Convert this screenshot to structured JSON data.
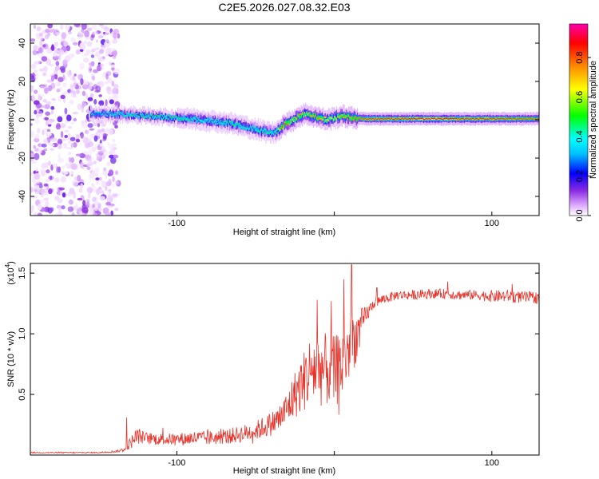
{
  "figure_title": "C2E5.2026.027.08.32.E03",
  "chart_data": [
    {
      "type": "heatmap",
      "title": "C2E5.2026.027.08.32.E03",
      "xlabel": "Height of straight line (km)",
      "ylabel": "Frequency (Hz)",
      "xlim": [
        -193,
        130
      ],
      "ylim": [
        -50,
        50
      ],
      "x_ticks": [
        -100,
        0,
        100
      ],
      "x_tick_labels": [
        "-100",
        "",
        "100"
      ],
      "y_ticks": [
        -40,
        -20,
        0,
        20,
        40
      ],
      "y_tick_labels": [
        "-40",
        "-20",
        "0",
        "20",
        "40"
      ],
      "colorbar": {
        "label": "Normalized spectral amplitude",
        "range": [
          0,
          0.97
        ],
        "ticks": [
          0.0,
          0.2,
          0.4,
          0.6,
          0.8
        ],
        "tick_labels": [
          "0.0",
          "0.2",
          "0.4",
          "0.6",
          "0.8"
        ],
        "colormap": [
          "#ffffff",
          "#e0b0ff",
          "#8a2be2",
          "#0000ff",
          "#00bfff",
          "#00ffff",
          "#00ff00",
          "#ffff00",
          "#ff8800",
          "#ff0000",
          "#ff00aa"
        ]
      },
      "noise_region_x": [
        -193,
        -137
      ],
      "signal_ridge": {
        "x": [
          -155,
          -140,
          -120,
          -100,
          -85,
          -75,
          -65,
          -55,
          -45,
          -38,
          -33,
          -28,
          -22,
          -18,
          -14,
          -10,
          -5,
          0,
          5,
          10,
          20,
          40,
          60,
          80,
          100,
          130
        ],
        "center_freq": [
          3,
          3,
          2,
          1,
          0,
          -1,
          -2,
          -4,
          -6,
          -7,
          -3,
          -1,
          2,
          3,
          2,
          1,
          0,
          1,
          2,
          1,
          0.5,
          0.5,
          0.5,
          0.5,
          0.5,
          0.5
        ],
        "peak_amplitude": [
          0.45,
          0.5,
          0.55,
          0.55,
          0.5,
          0.5,
          0.55,
          0.5,
          0.55,
          0.5,
          0.85,
          0.7,
          0.75,
          0.7,
          0.75,
          0.75,
          0.7,
          0.7,
          0.75,
          0.75,
          0.85,
          0.85,
          0.9,
          0.85,
          0.85,
          0.8
        ]
      }
    },
    {
      "type": "line",
      "title": "",
      "xlabel": "Height of straight line (km)",
      "ylabel": "SNR (10 * v/v)",
      "y_multiplier_label": "(x10",
      "y_multiplier_exp": "4",
      "xlim": [
        -193,
        130
      ],
      "ylim": [
        0,
        1.58
      ],
      "x_ticks": [
        -100,
        0,
        100
      ],
      "x_tick_labels": [
        "-100",
        "",
        "100"
      ],
      "y_ticks": [
        0.5,
        1.0,
        1.5
      ],
      "y_tick_labels": [
        "0.5",
        "1.0",
        "1.5"
      ],
      "color": "#e8332a",
      "series": [
        {
          "x": [
            -193,
            -170,
            -150,
            -138,
            -133,
            -128,
            -125,
            -120,
            -110,
            -100,
            -90,
            -80,
            -70,
            -60,
            -50,
            -40,
            -35,
            -30,
            -25,
            -20,
            -15,
            -10,
            -5,
            0,
            5,
            10,
            15,
            20,
            25,
            30,
            40,
            50,
            60,
            70,
            80,
            90,
            100,
            110,
            120,
            130
          ],
          "values": [
            0.02,
            0.02,
            0.02,
            0.03,
            0.05,
            0.12,
            0.16,
            0.14,
            0.13,
            0.13,
            0.14,
            0.14,
            0.15,
            0.17,
            0.2,
            0.26,
            0.3,
            0.38,
            0.5,
            0.6,
            0.7,
            0.72,
            0.7,
            0.68,
            0.75,
            0.9,
            1.0,
            1.15,
            1.25,
            1.28,
            1.32,
            1.32,
            1.33,
            1.33,
            1.32,
            1.32,
            1.31,
            1.31,
            1.3,
            1.3
          ],
          "noise_amplitude": [
            0.005,
            0.005,
            0.005,
            0.01,
            0.02,
            0.06,
            0.07,
            0.05,
            0.05,
            0.05,
            0.06,
            0.06,
            0.06,
            0.07,
            0.08,
            0.1,
            0.12,
            0.15,
            0.2,
            0.25,
            0.3,
            0.32,
            0.3,
            0.3,
            0.3,
            0.28,
            0.2,
            0.08,
            0.04,
            0.04,
            0.04,
            0.04,
            0.04,
            0.04,
            0.04,
            0.04,
            0.05,
            0.05,
            0.05,
            0.05
          ],
          "spikes": [
            {
              "x": -132,
              "value": 0.31
            },
            {
              "x": -11,
              "value": 1.28
            },
            {
              "x": -2,
              "value": 1.27
            },
            {
              "x": 6,
              "value": 1.45
            },
            {
              "x": 11,
              "value": 1.57
            },
            {
              "x": 27,
              "value": 1.38
            },
            {
              "x": 72,
              "value": 1.43
            },
            {
              "x": 113,
              "value": 1.41
            }
          ]
        }
      ]
    }
  ]
}
